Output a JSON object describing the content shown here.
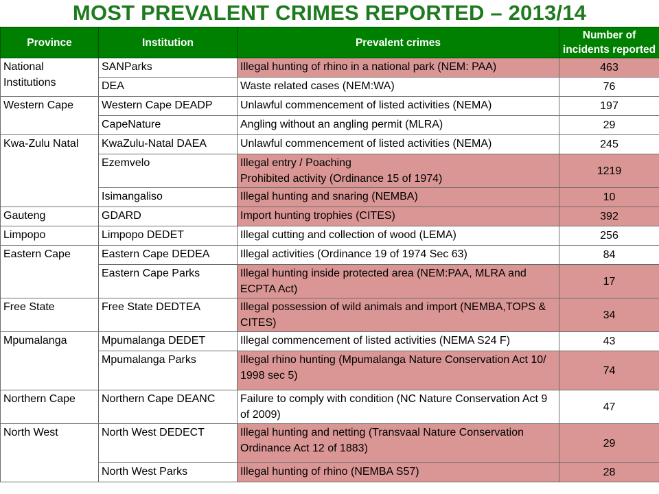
{
  "title": "MOST PREVALENT CRIMES REPORTED – 2013/14",
  "colors": {
    "title": "#1e7a1e",
    "header_bg": "#008000",
    "highlight": "#d99694"
  },
  "table": {
    "headers": [
      "Province",
      "Institution",
      "Prevalent crimes",
      "Number of incidents reported"
    ],
    "rows": [
      {
        "province": "National Institutions",
        "institution": "SANParks",
        "crime": "Illegal hunting of rhino in a national park (NEM: PAA)",
        "incidents": "463",
        "highlight": true
      },
      {
        "province": "",
        "institution": "DEA",
        "crime": "Waste related cases (NEM:WA)",
        "incidents": "76",
        "highlight": false
      },
      {
        "province": "Western Cape",
        "institution": "Western Cape DEADP",
        "crime": "Unlawful commencement of listed activities (NEMA)",
        "incidents": "197",
        "highlight": false
      },
      {
        "province": "",
        "institution": "CapeNature",
        "crime": "Angling without an angling permit (MLRA)",
        "incidents": "29",
        "highlight": false
      },
      {
        "province": "Kwa-Zulu Natal",
        "institution": "KwaZulu-Natal DAEA",
        "crime": "Unlawful commencement of listed activities (NEMA)",
        "incidents": "245",
        "highlight": false
      },
      {
        "province": "",
        "institution": "Ezemvelo",
        "crime_lines": [
          "Illegal entry / Poaching",
          "Prohibited activity (Ordinance 15 of 1974)"
        ],
        "incidents": "1219",
        "highlight": true
      },
      {
        "province": "",
        "institution": "Isimangaliso",
        "crime": "Illegal hunting and snaring (NEMBA)",
        "incidents": "10",
        "highlight": true
      },
      {
        "province": "Gauteng",
        "institution": "GDARD",
        "crime": "Import hunting trophies (CITES)",
        "incidents": "392",
        "highlight": true
      },
      {
        "province": "Limpopo",
        "institution": "Limpopo DEDET",
        "crime": "Illegal cutting and collection of wood (LEMA)",
        "incidents": "256",
        "highlight": false
      },
      {
        "province": "Eastern Cape",
        "institution": "Eastern Cape DEDEA",
        "crime": "Illegal activities (Ordinance 19 of 1974 Sec 63)",
        "incidents": "84",
        "highlight": false
      },
      {
        "province": "",
        "institution": "Eastern Cape Parks",
        "crime": "Illegal hunting inside protected area (NEM:PAA, MLRA and ECPTA Act)",
        "incidents": "17",
        "highlight": true
      },
      {
        "province": "Free State",
        "institution": "Free State DEDTEA",
        "crime": "Illegal possession of wild animals and import (NEMBA,TOPS & CITES)",
        "incidents": "34",
        "highlight": true
      },
      {
        "province": "Mpumalanga",
        "institution": "Mpumalanga DEDET",
        "crime": "Illegal commencement of listed activities (NEMA S24 F)",
        "incidents": "43",
        "highlight": false
      },
      {
        "province": "",
        "institution": "Mpumalanga Parks",
        "crime": "Illegal rhino hunting (Mpumalanga Nature Conservation Act 10/ 1998 sec 5)",
        "incidents": "74",
        "highlight": true
      },
      {
        "province": "Northern Cape",
        "institution": "Northern Cape DEANC",
        "crime": "Failure to comply with condition (NC Nature Conservation Act 9 of 2009)",
        "incidents": "47",
        "highlight": false
      },
      {
        "province": "North West",
        "institution": "North West DEDECT",
        "crime": "Illegal hunting and netting (Transvaal Nature Conservation Ordinance Act 12 of 1883)",
        "incidents": "29",
        "highlight": true
      },
      {
        "province": "",
        "institution": "North West Parks",
        "crime": "Illegal hunting of rhino (NEMBA S57)",
        "incidents": "28",
        "highlight": true
      }
    ]
  }
}
